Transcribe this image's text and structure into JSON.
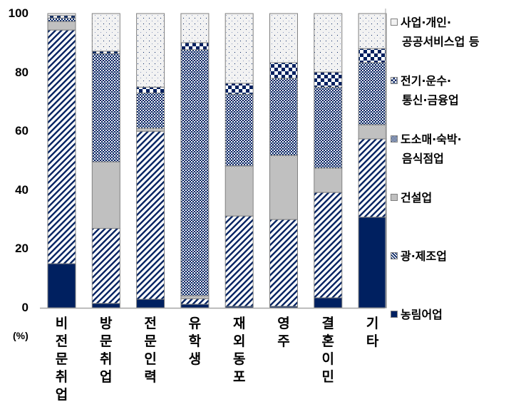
{
  "chart_data": {
    "type": "bar",
    "stacked": true,
    "orientation": "vertical",
    "title": "",
    "xlabel": "",
    "ylabel": "(%)",
    "ylim": [
      0,
      100
    ],
    "yticks": [
      0,
      20,
      40,
      60,
      80,
      100
    ],
    "grid": false,
    "legend_position": "right",
    "categories": [
      "비전문취업",
      "방문취업",
      "전문인력",
      "유학생",
      "재외동포",
      "영주",
      "결혼이민",
      "기타"
    ],
    "series": [
      {
        "name": "농림어업",
        "pattern": "solid",
        "color": "#002060",
        "values": [
          15.0,
          1.5,
          2.9,
          1.2,
          0.5,
          0.5,
          3.4,
          30.8
        ]
      },
      {
        "name": "광·제조업",
        "pattern": "diagonal-stripe",
        "color": "#002060",
        "values": [
          79.4,
          25.5,
          57.1,
          1.9,
          30.7,
          29.5,
          35.8,
          26.6
        ]
      },
      {
        "name": "건설업",
        "pattern": "solid",
        "color": "#c0c0c0",
        "values": [
          2.9,
          22.6,
          1.0,
          1.0,
          17.0,
          21.8,
          8.3,
          4.8
        ]
      },
      {
        "name": "도소매·숙박·음식점업",
        "pattern": "checker-fine",
        "color": "#002060",
        "values": [
          1.2,
          36.8,
          12.0,
          83.6,
          24.4,
          26.2,
          27.5,
          21.1
        ]
      },
      {
        "name": "전기·운수·통신·금융업",
        "pattern": "checker-large",
        "color": "#002060",
        "values": [
          0.8,
          0.8,
          2.0,
          2.4,
          3.7,
          5.3,
          5.1,
          4.8
        ]
      },
      {
        "name": "사업·개인·공공서비스업 등",
        "pattern": "dotted",
        "color": "#f2f2f2",
        "values": [
          0.7,
          12.8,
          25.0,
          9.9,
          23.7,
          16.7,
          19.9,
          11.9
        ]
      }
    ]
  },
  "axis": {
    "yticks": [
      "100",
      "80",
      "60",
      "40",
      "20",
      "0"
    ],
    "unit": "(%)"
  },
  "legend": [
    {
      "line1": "사업·개인·",
      "line2": "공공서비스업 등",
      "icon": "dotted-swatch-icon"
    },
    {
      "line1": "전기·운수·",
      "line2": "통신·금융업",
      "icon": "large-checker-swatch-icon"
    },
    {
      "line1": "도소매·숙박·",
      "line2": "음식점업",
      "icon": "fine-checker-swatch-icon"
    },
    {
      "line1": "건설업",
      "line2": "",
      "icon": "gray-swatch-icon"
    },
    {
      "line1": "광·제조업",
      "line2": "",
      "icon": "stripe-swatch-icon"
    },
    {
      "line1": "농림어업",
      "line2": "",
      "icon": "navy-swatch-icon"
    }
  ],
  "colors": {
    "navy": "#002060",
    "gray": "#c0c0c0",
    "light": "#f2f2f2",
    "border": "#808080"
  }
}
